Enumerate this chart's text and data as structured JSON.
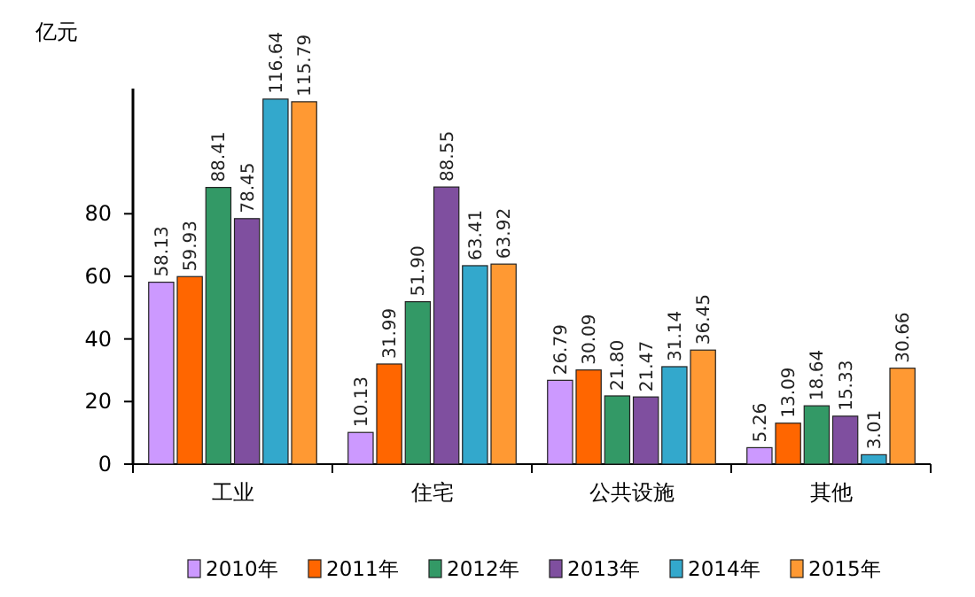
{
  "chart_data": {
    "type": "bar",
    "ylabel": "亿元",
    "categories": [
      "工业",
      "住宅",
      "公共设施",
      "其他"
    ],
    "series": [
      {
        "name": "2010年",
        "color": "#cc99ff",
        "values": [
          58.13,
          10.13,
          26.79,
          5.26
        ],
        "value_labels": [
          "58.13",
          "10.13",
          "26.79",
          "5.26"
        ]
      },
      {
        "name": "2011年",
        "color": "#ff6600",
        "values": [
          59.93,
          31.99,
          30.09,
          13.09
        ],
        "value_labels": [
          "59.93",
          "31.99",
          "30.09",
          "13.09"
        ]
      },
      {
        "name": "2012年",
        "color": "#339966",
        "values": [
          88.41,
          51.9,
          21.8,
          18.64
        ],
        "value_labels": [
          "88.41",
          "51.90",
          "21.80",
          "18.64"
        ]
      },
      {
        "name": "2013年",
        "color": "#7f4f9f",
        "values": [
          78.45,
          88.55,
          21.47,
          15.33
        ],
        "value_labels": [
          "78.45",
          "88.55",
          "21.47",
          "15.33"
        ]
      },
      {
        "name": "2014年",
        "color": "#33a8cc",
        "values": [
          116.64,
          63.41,
          31.14,
          3.01
        ],
        "value_labels": [
          "116.64",
          "63.41",
          "31.14",
          "3.01"
        ]
      },
      {
        "name": "2015年",
        "color": "#ff9933",
        "values": [
          115.79,
          63.92,
          36.45,
          30.66
        ],
        "value_labels": [
          "115.79",
          "63.92",
          "36.45",
          "30.66"
        ]
      }
    ],
    "ylim": [
      0,
      120
    ],
    "yticks": [
      0,
      20,
      40,
      60,
      80
    ],
    "legend": "bottom",
    "grid": false
  }
}
